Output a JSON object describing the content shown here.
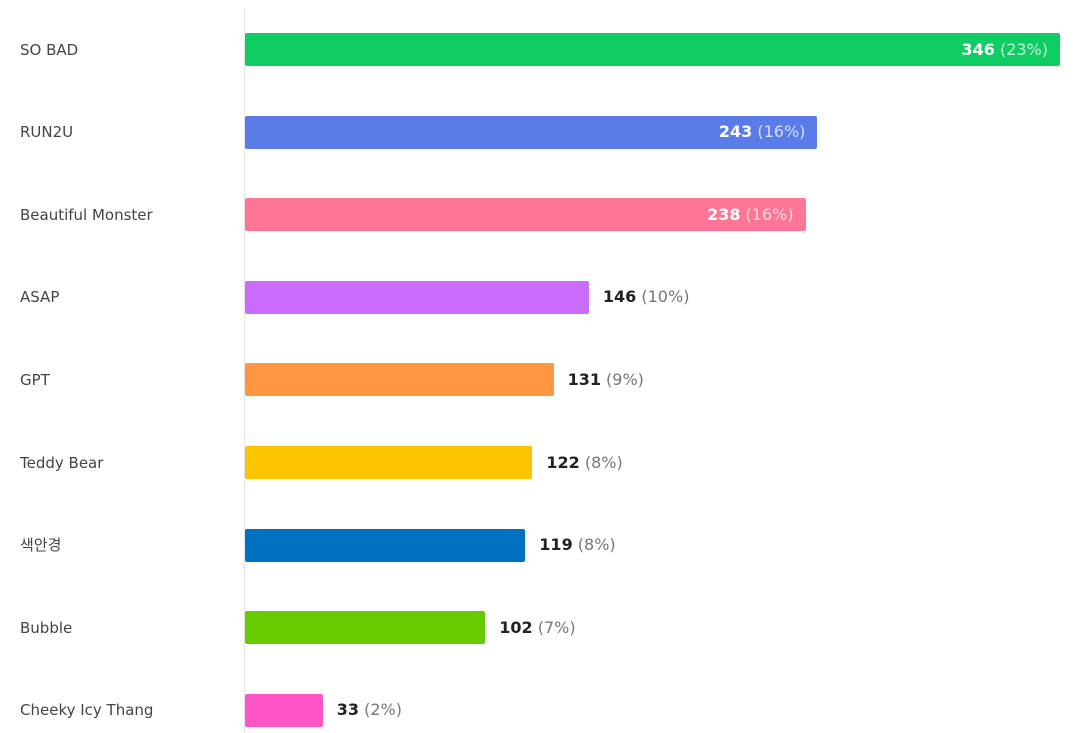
{
  "chart_data": {
    "type": "bar",
    "orientation": "horizontal",
    "categories": [
      "SO BAD",
      "RUN2U",
      "Beautiful Monster",
      "ASAP",
      "GPT",
      "Teddy Bear",
      "색안경",
      "Bubble",
      "Cheeky Icy Thang"
    ],
    "values": [
      346,
      243,
      238,
      146,
      131,
      122,
      119,
      102,
      33
    ],
    "percent_labels": [
      "(23%)",
      "(16%)",
      "(16%)",
      "(10%)",
      "(9%)",
      "(8%)",
      "(8%)",
      "(7%)",
      "(2%)"
    ],
    "colors": [
      "#0fcc63",
      "#5a7be8",
      "#ff7595",
      "#c96bfb",
      "#ff9642",
      "#fcc400",
      "#0070c0",
      "#66cc00",
      "#ff55c6"
    ],
    "xlim": [
      0,
      346
    ],
    "grid": false,
    "legend": "none"
  }
}
